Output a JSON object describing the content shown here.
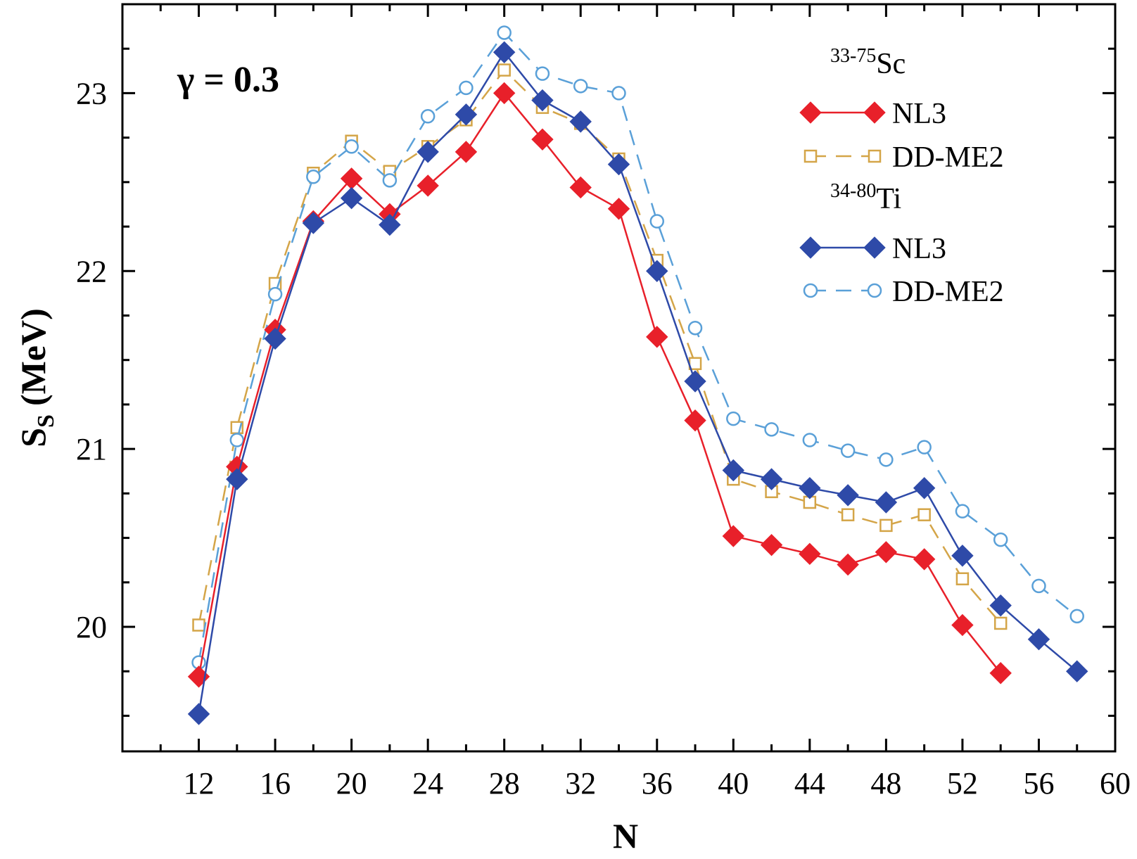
{
  "chart_data": {
    "type": "line",
    "xlabel": "N",
    "ylabel": "S",
    "ylabel_sub": "S",
    "ylabel_unit": "(MeV)",
    "annotation": "γ = 0.3",
    "xlim": [
      8,
      60
    ],
    "ylim": [
      19.3,
      23.5
    ],
    "xticks": [
      12,
      16,
      20,
      24,
      28,
      32,
      36,
      40,
      44,
      48,
      52,
      56,
      60
    ],
    "yticks": [
      20,
      21,
      22,
      23
    ],
    "legend_position": "top-right",
    "legend_groups": [
      {
        "sup": "33-75",
        "label": "Sc",
        "series": [
          0,
          1
        ]
      },
      {
        "sup": "34-80",
        "label": "Ti",
        "series": [
          2,
          3
        ]
      }
    ],
    "series": [
      {
        "name": "NL3",
        "color": "#e8202a",
        "marker": "diamond-filled",
        "line": "solid",
        "x": [
          12,
          14,
          16,
          18,
          20,
          22,
          24,
          26,
          28,
          30,
          32,
          34,
          36,
          38,
          40,
          42,
          44,
          46,
          48,
          50,
          52,
          54
        ],
        "y": [
          19.72,
          20.9,
          21.67,
          22.28,
          22.52,
          22.32,
          22.48,
          22.67,
          23.0,
          22.74,
          22.47,
          22.35,
          21.63,
          21.16,
          20.51,
          20.46,
          20.41,
          20.35,
          20.42,
          20.38,
          20.01,
          19.74
        ]
      },
      {
        "name": "DD-ME2",
        "color": "#d4a548",
        "marker": "square-open",
        "line": "dashed",
        "x": [
          12,
          14,
          16,
          18,
          20,
          22,
          24,
          26,
          28,
          30,
          32,
          34,
          36,
          38,
          40,
          42,
          44,
          46,
          48,
          50,
          52,
          54
        ],
        "y": [
          20.01,
          21.12,
          21.93,
          22.55,
          22.73,
          22.56,
          22.7,
          22.85,
          23.13,
          22.92,
          22.83,
          22.63,
          22.06,
          21.48,
          20.83,
          20.76,
          20.7,
          20.63,
          20.57,
          20.63,
          20.27,
          20.02
        ]
      },
      {
        "name": "NL3",
        "color": "#2e4aa8",
        "marker": "diamond-filled",
        "line": "solid",
        "x": [
          12,
          14,
          16,
          18,
          20,
          22,
          24,
          26,
          28,
          30,
          32,
          34,
          36,
          38,
          40,
          42,
          44,
          46,
          48,
          50,
          52,
          54,
          56,
          58
        ],
        "y": [
          19.51,
          20.83,
          21.62,
          22.27,
          22.41,
          22.26,
          22.67,
          22.88,
          23.23,
          22.96,
          22.84,
          22.6,
          22.0,
          21.38,
          20.88,
          20.83,
          20.78,
          20.74,
          20.7,
          20.78,
          20.4,
          20.12,
          19.93,
          19.75
        ]
      },
      {
        "name": "DD-ME2",
        "color": "#5aa0d8",
        "marker": "circle-open",
        "line": "dashed",
        "x": [
          12,
          14,
          16,
          18,
          20,
          22,
          24,
          26,
          28,
          30,
          32,
          34,
          36,
          38,
          40,
          42,
          44,
          46,
          48,
          50,
          52,
          54,
          56,
          58
        ],
        "y": [
          19.8,
          21.05,
          21.87,
          22.53,
          22.7,
          22.51,
          22.87,
          23.03,
          23.34,
          23.11,
          23.04,
          23.0,
          22.28,
          21.68,
          21.17,
          21.11,
          21.05,
          20.99,
          20.94,
          21.01,
          20.65,
          20.49,
          20.23,
          20.06
        ]
      }
    ]
  }
}
